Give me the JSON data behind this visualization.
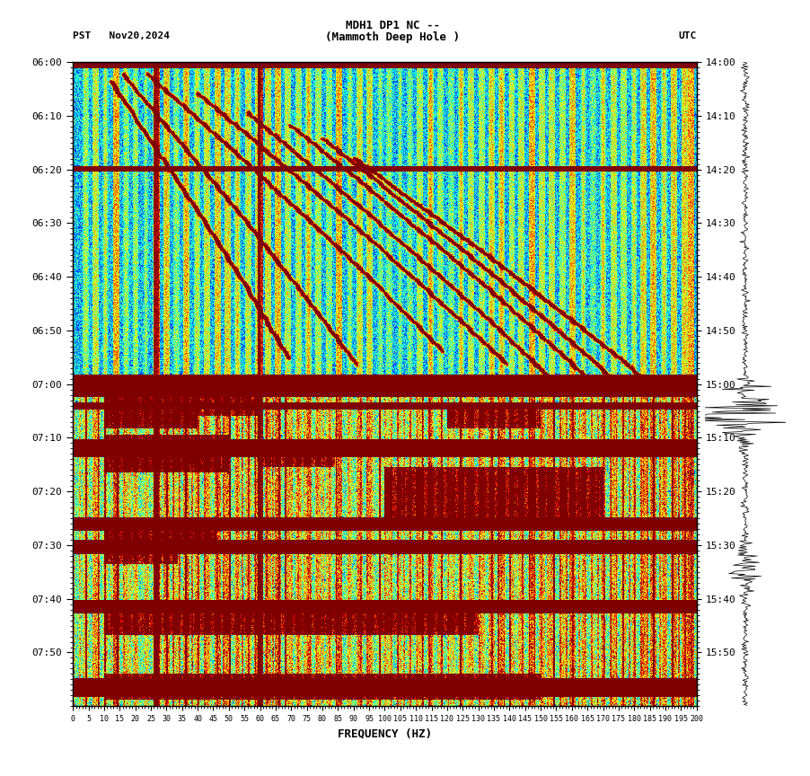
{
  "title_line1": "MDH1 DP1 NC --",
  "title_line2": "(Mammoth Deep Hole )",
  "left_label": "PST   Nov20,2024",
  "right_label": "UTC",
  "xlabel": "FREQUENCY (HZ)",
  "freq_min": 0,
  "freq_max": 200,
  "ytick_pst": [
    "06:00",
    "06:10",
    "06:20",
    "06:30",
    "06:40",
    "06:50",
    "07:00",
    "07:10",
    "07:20",
    "07:30",
    "07:40",
    "07:50"
  ],
  "ytick_utc": [
    "14:00",
    "14:10",
    "14:20",
    "14:30",
    "14:40",
    "14:50",
    "15:00",
    "15:10",
    "15:20",
    "15:30",
    "15:40",
    "15:50"
  ],
  "colormap": "jet",
  "fig_width": 9.02,
  "fig_height": 8.64,
  "dpi": 100,
  "background_color": "#ffffff"
}
